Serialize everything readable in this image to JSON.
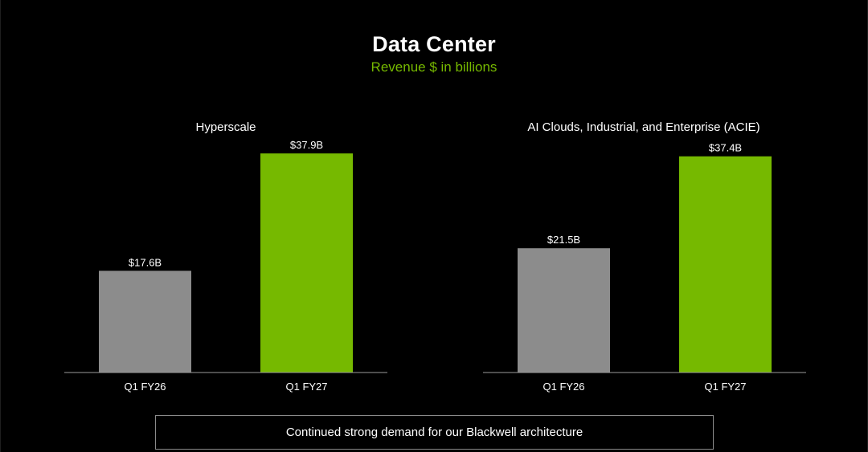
{
  "slide": {
    "title": "Data Center",
    "subtitle": "Revenue $ in billions",
    "footer": "Continued strong demand for our Blackwell architecture"
  },
  "colors": {
    "background": "#000000",
    "prior_year": "#8c8c8c",
    "current_year": "#76b900",
    "accent_text": "#76b900"
  },
  "chart_data": [
    {
      "type": "bar",
      "title": "Hyperscale",
      "categories": [
        "Q1 FY26",
        "Q1 FY27"
      ],
      "values": [
        17.6,
        37.9
      ],
      "data_labels": [
        "$17.6B",
        "$37.9B"
      ],
      "bar_colors": [
        "#8c8c8c",
        "#76b900"
      ],
      "ylim": [
        0,
        40
      ],
      "xlabel": "",
      "ylabel": "",
      "grid": false,
      "legend": "none"
    },
    {
      "type": "bar",
      "title": "AI Clouds, Industrial, and Enterprise (ACIE)",
      "categories": [
        "Q1 FY26",
        "Q1 FY27"
      ],
      "values": [
        21.5,
        37.4
      ],
      "data_labels": [
        "$21.5B",
        "$37.4B"
      ],
      "bar_colors": [
        "#8c8c8c",
        "#76b900"
      ],
      "ylim": [
        0,
        40
      ],
      "xlabel": "",
      "ylabel": "",
      "grid": false,
      "legend": "none"
    }
  ]
}
